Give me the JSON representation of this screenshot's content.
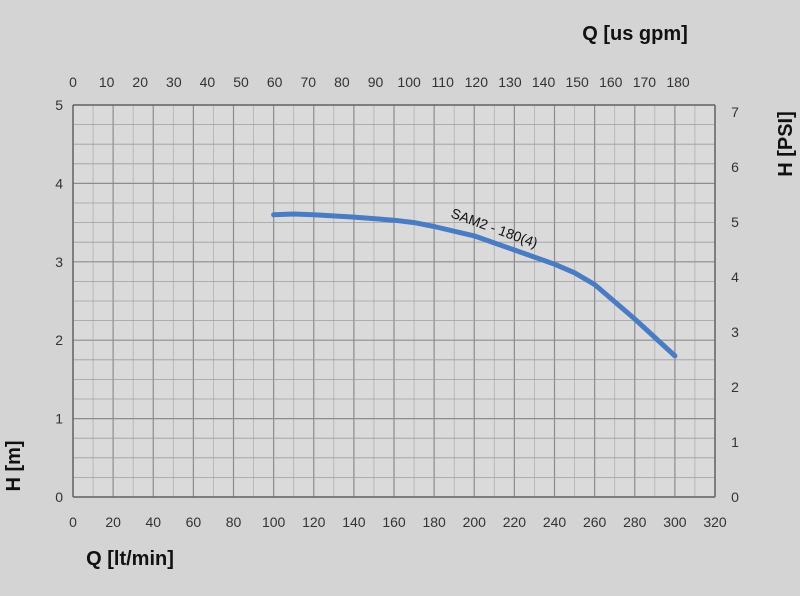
{
  "chart_data": {
    "type": "line",
    "x_bottom": {
      "label": "Q [lt/min]",
      "range": [
        0,
        320
      ],
      "ticks": [
        0,
        20,
        40,
        60,
        80,
        100,
        120,
        140,
        160,
        180,
        200,
        220,
        240,
        260,
        280,
        300,
        320
      ]
    },
    "x_top": {
      "label": "Q [us gpm]",
      "range": [
        0,
        180
      ],
      "ticks": [
        0,
        10,
        20,
        30,
        40,
        50,
        60,
        70,
        80,
        90,
        100,
        110,
        120,
        130,
        140,
        150,
        160,
        170,
        180
      ]
    },
    "y_left": {
      "label": "H [m]",
      "range": [
        0,
        5
      ],
      "ticks": [
        0,
        1,
        2,
        3,
        4,
        5
      ]
    },
    "y_right": {
      "label": "H [PSI]",
      "range": [
        0,
        7
      ],
      "ticks": [
        0,
        1,
        2,
        3,
        4,
        5,
        6,
        7
      ]
    },
    "grid": true,
    "series": [
      {
        "name": "SAM2 - 180(4)",
        "color": "#4a7cc4",
        "x": [
          100,
          110,
          120,
          140,
          160,
          170,
          180,
          200,
          220,
          240,
          250,
          260,
          280,
          300
        ],
        "y": [
          3.6,
          3.61,
          3.6,
          3.57,
          3.53,
          3.5,
          3.45,
          3.33,
          3.15,
          2.97,
          2.86,
          2.71,
          2.27,
          1.8
        ]
      }
    ]
  }
}
